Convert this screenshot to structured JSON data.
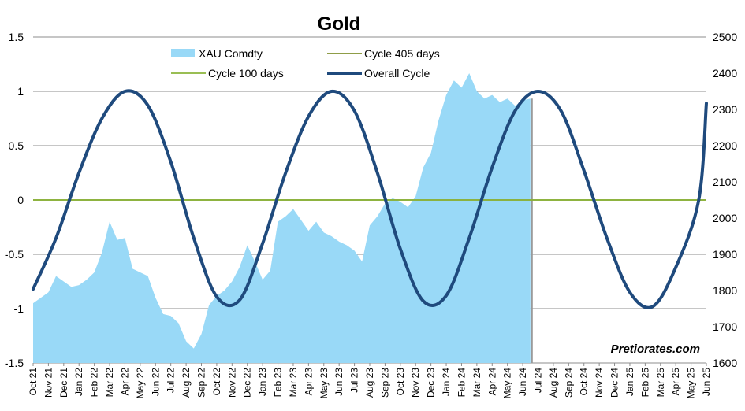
{
  "chart_data": {
    "type": "line",
    "title": "Gold",
    "watermark": "Pretiorates.com",
    "left_axis": {
      "ticks": [
        -1.5,
        -1,
        -0.5,
        0,
        0.5,
        1,
        1.5
      ],
      "tick_labels": [
        "-1.5",
        "-1",
        "-0.5",
        "0",
        "0.5",
        "1",
        "1.5"
      ],
      "ylim": [
        -1.5,
        1.5
      ]
    },
    "right_axis": {
      "ticks": [
        1600,
        1700,
        1800,
        1900,
        2000,
        2100,
        2200,
        2300,
        2400,
        2500
      ],
      "tick_labels": [
        "1600",
        "1700",
        "1800",
        "1900",
        "2000",
        "2100",
        "2200",
        "2300",
        "2400",
        "2500"
      ],
      "ylim": [
        1600,
        2500
      ]
    },
    "grid": true,
    "legend": {
      "placement": "top"
    },
    "x_labels": [
      "Oct 21",
      "Nov 21",
      "Dec 21",
      "Jan 22",
      "Feb 22",
      "Mar 22",
      "Apr 22",
      "May 22",
      "Jun 22",
      "Jul 22",
      "Aug 22",
      "Sep 22",
      "Oct 22",
      "Nov 22",
      "Dec 22",
      "Jan 23",
      "Feb 23",
      "Mar 23",
      "Apr 23",
      "May 23",
      "Jun 23",
      "Jul 23",
      "Aug 23",
      "Sep 23",
      "Oct 23",
      "Nov 23",
      "Dec 23",
      "Jan 24",
      "Feb 24",
      "Mar 24",
      "Apr 24",
      "May 24",
      "Jun 24",
      "Jul 24",
      "Aug 24",
      "Sep 24",
      "Oct 24",
      "Nov 24",
      "Dec 24",
      "Jan 25",
      "Feb 25",
      "Mar 25",
      "Apr 25",
      "May 25",
      "Jun 25"
    ],
    "series": [
      {
        "name": "XAU Comdty",
        "kind": "area",
        "axis": "right",
        "color": "#99D9F7",
        "x": [
          0,
          0.5,
          1,
          1.5,
          2,
          2.5,
          3,
          3.5,
          4,
          4.5,
          5,
          5.5,
          6,
          6.5,
          7,
          7.5,
          8,
          8.5,
          9,
          9.5,
          10,
          10.5,
          11,
          11.5,
          12,
          12.5,
          13,
          13.5,
          14,
          14.5,
          15,
          15.5,
          16,
          16.5,
          17,
          17.5,
          18,
          18.5,
          19,
          19.5,
          20,
          20.5,
          21,
          21.5,
          22,
          22.5,
          23,
          23.5,
          24,
          24.5,
          25,
          25.5,
          26,
          26.5,
          27,
          27.5,
          28,
          28.5,
          29,
          29.5,
          30,
          30.5,
          31,
          31.5,
          32,
          32.5
        ],
        "values": [
          1765,
          1780,
          1795,
          1840,
          1825,
          1810,
          1815,
          1830,
          1850,
          1905,
          1990,
          1940,
          1945,
          1860,
          1850,
          1840,
          1780,
          1735,
          1730,
          1710,
          1660,
          1640,
          1680,
          1760,
          1785,
          1800,
          1825,
          1865,
          1925,
          1880,
          1830,
          1855,
          1990,
          2005,
          2025,
          1995,
          1965,
          1990,
          1960,
          1950,
          1935,
          1925,
          1910,
          1880,
          1980,
          2005,
          2040,
          2055,
          2045,
          2030,
          2060,
          2140,
          2180,
          2270,
          2340,
          2380,
          2360,
          2400,
          2350,
          2330,
          2340,
          2320,
          2330,
          2310,
          2325,
          2330
        ]
      },
      {
        "name": "Cycle 405 days",
        "kind": "line",
        "axis": "left",
        "color": "#7F8F2E",
        "value": 0
      },
      {
        "name": "Cycle 100 days",
        "kind": "line",
        "axis": "left",
        "color": "#8CB43C",
        "value": 0
      },
      {
        "name": "Overall Cycle",
        "kind": "line",
        "axis": "left",
        "color": "#1F4A7D",
        "x": [
          0,
          1.5,
          3,
          4.5,
          6,
          7.5,
          9,
          10.5,
          12,
          13.5,
          15,
          16.5,
          18,
          19.5,
          21,
          22.5,
          24,
          25.5,
          27,
          28.5,
          30,
          31.5,
          33,
          34.5,
          36,
          37.5,
          39,
          40.5,
          42,
          43.5,
          44
        ],
        "values": [
          -0.82,
          -0.35,
          0.25,
          0.75,
          1.0,
          0.87,
          0.35,
          -0.35,
          -0.89,
          -0.92,
          -0.4,
          0.25,
          0.77,
          1.0,
          0.82,
          0.25,
          -0.45,
          -0.93,
          -0.88,
          -0.35,
          0.3,
          0.82,
          1.0,
          0.82,
          0.27,
          -0.35,
          -0.85,
          -0.98,
          -0.62,
          0.0,
          0.89
        ]
      }
    ]
  }
}
